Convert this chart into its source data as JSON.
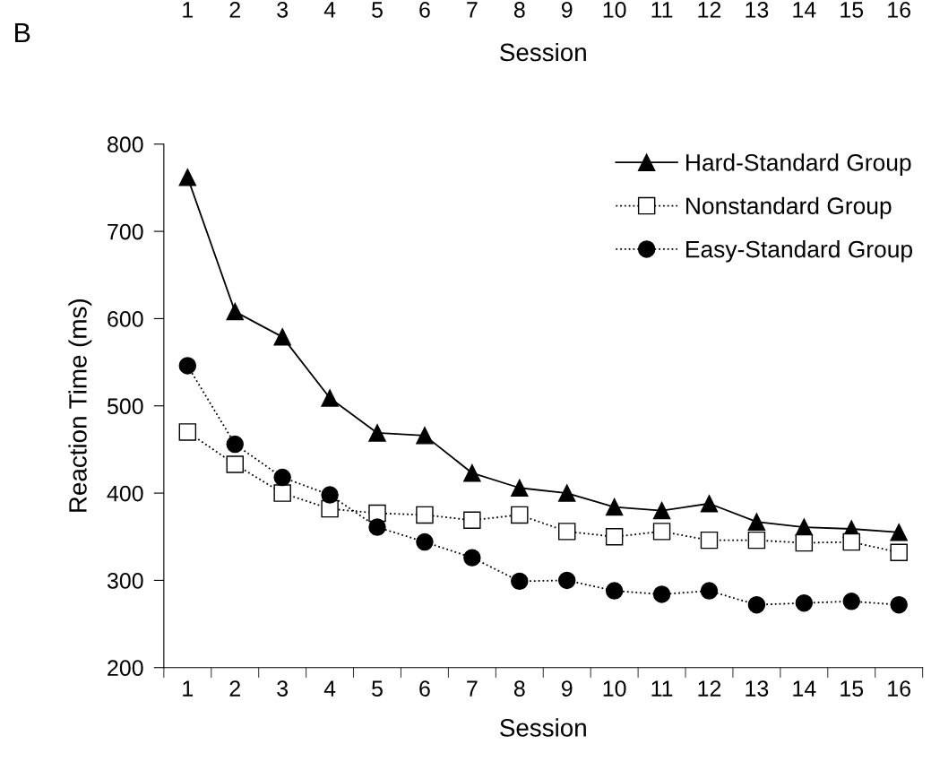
{
  "chart_data": {
    "type": "line",
    "annotations": [
      "B",
      "1",
      "2",
      "3",
      "4",
      "5",
      "6",
      "7",
      "8",
      "9",
      "10",
      "11",
      "12",
      "13",
      "14",
      "15",
      "16",
      "Session"
    ],
    "categories": [
      "1",
      "2",
      "3",
      "4",
      "5",
      "6",
      "7",
      "8",
      "9",
      "10",
      "11",
      "12",
      "13",
      "14",
      "15",
      "16"
    ],
    "xlabel": "Session",
    "ylabel": "Reaction Time (ms)",
    "ylim": [
      200,
      800
    ],
    "yticks": [
      200,
      300,
      400,
      500,
      600,
      700,
      800
    ],
    "grid": false,
    "legend": "top right",
    "series": [
      {
        "name": "Hard-Standard Group",
        "color": "#000000",
        "marker": "triangle",
        "line_style": "solid",
        "values": [
          762,
          608,
          579,
          509,
          469,
          466,
          423,
          406,
          400,
          384,
          380,
          388,
          367,
          361,
          359,
          355
        ]
      },
      {
        "name": "Nonstandard Group",
        "color": "#000000",
        "marker": "square",
        "line_style": "dotted",
        "values": [
          470,
          433,
          400,
          382,
          377,
          375,
          369,
          375,
          356,
          350,
          356,
          346,
          346,
          343,
          344,
          332
        ]
      },
      {
        "name": "Easy-Standard Group",
        "color": "#000000",
        "marker": "circle",
        "line_style": "dotted",
        "values": [
          546,
          456,
          418,
          398,
          361,
          344,
          326,
          299,
          300,
          288,
          284,
          288,
          272,
          274,
          276,
          272
        ]
      }
    ]
  }
}
